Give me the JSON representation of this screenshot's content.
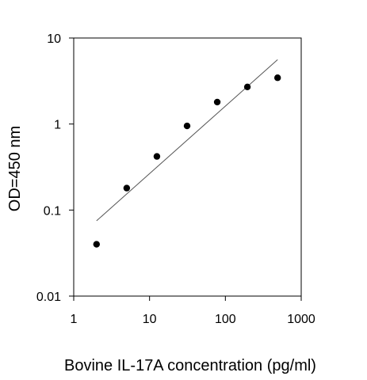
{
  "chart_data": {
    "type": "scatter",
    "xlabel": "Bovine IL-17A concentration (pg/ml)",
    "ylabel": "OD=450 nm",
    "xscale": "log",
    "yscale": "log",
    "xlim": [
      1,
      1000
    ],
    "ylim": [
      0.01,
      10
    ],
    "x_ticks": [
      {
        "value": 1,
        "label": "1"
      },
      {
        "value": 10,
        "label": "10"
      },
      {
        "value": 100,
        "label": "100"
      },
      {
        "value": 1000,
        "label": "1000"
      }
    ],
    "y_ticks": [
      {
        "value": 0.01,
        "label": "0.01"
      },
      {
        "value": 0.1,
        "label": "0.1"
      },
      {
        "value": 1,
        "label": "1"
      },
      {
        "value": 10,
        "label": "10"
      }
    ],
    "grid": false,
    "series": [
      {
        "points": [
          {
            "x": 2,
            "y": 0.04
          },
          {
            "x": 5,
            "y": 0.18
          },
          {
            "x": 12.5,
            "y": 0.42
          },
          {
            "x": 31.25,
            "y": 0.95
          },
          {
            "x": 78.1,
            "y": 1.8
          },
          {
            "x": 195,
            "y": 2.7
          },
          {
            "x": 488,
            "y": 3.45
          }
        ],
        "marker": "filled-circle",
        "color": "#000000"
      }
    ],
    "fit_line": {
      "x": [
        2,
        488
      ],
      "y": [
        0.075,
        5.6
      ],
      "color": "#555555"
    }
  }
}
